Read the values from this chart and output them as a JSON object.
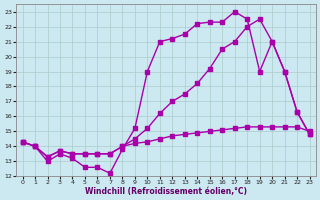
{
  "xlabel": "Windchill (Refroidissement éolien,°C)",
  "bg_color": "#cce8f0",
  "grid_color": "#aacccc",
  "line_color": "#aa00aa",
  "xlim": [
    -0.5,
    23.5
  ],
  "ylim": [
    12,
    23.5
  ],
  "xticks": [
    0,
    1,
    2,
    3,
    4,
    5,
    6,
    7,
    8,
    9,
    10,
    11,
    12,
    13,
    14,
    15,
    16,
    17,
    18,
    19,
    20,
    21,
    22,
    23
  ],
  "yticks": [
    12,
    13,
    14,
    15,
    16,
    17,
    18,
    19,
    20,
    21,
    22,
    23
  ],
  "line1_x": [
    0,
    1,
    2,
    3,
    4,
    5,
    6,
    7,
    8,
    9,
    10,
    11,
    12,
    13,
    14,
    15,
    16,
    17,
    18,
    19,
    20,
    21,
    22,
    23
  ],
  "line1_y": [
    14.3,
    14.0,
    13.0,
    13.5,
    13.2,
    12.6,
    12.6,
    12.2,
    13.8,
    15.2,
    19.0,
    21.0,
    21.2,
    21.5,
    22.2,
    22.3,
    22.3,
    23.0,
    22.5,
    19.0,
    21.0,
    19.0,
    16.3,
    14.8
  ],
  "line2_x": [
    0,
    1,
    2,
    3,
    4,
    5,
    6,
    7,
    8,
    9,
    10,
    11,
    12,
    13,
    14,
    15,
    16,
    17,
    18,
    19,
    20,
    21,
    22,
    23
  ],
  "line2_y": [
    14.3,
    14.0,
    13.3,
    13.7,
    13.5,
    13.5,
    13.5,
    13.5,
    14.0,
    14.2,
    14.3,
    14.5,
    14.7,
    14.8,
    14.9,
    15.0,
    15.1,
    15.2,
    15.3,
    15.3,
    15.3,
    15.3,
    15.3,
    15.0
  ],
  "line3_x": [
    0,
    1,
    2,
    3,
    4,
    5,
    6,
    7,
    8,
    9,
    10,
    11,
    12,
    13,
    14,
    15,
    16,
    17,
    18,
    19,
    20,
    21,
    22,
    23
  ],
  "line3_y": [
    14.3,
    14.0,
    13.3,
    13.7,
    13.5,
    13.5,
    13.5,
    13.5,
    14.0,
    14.5,
    15.2,
    16.2,
    17.0,
    17.5,
    18.2,
    19.2,
    20.5,
    21.0,
    22.0,
    22.5,
    21.0,
    19.0,
    16.3,
    14.8
  ],
  "markersize": 2.5,
  "linewidth": 1.0
}
